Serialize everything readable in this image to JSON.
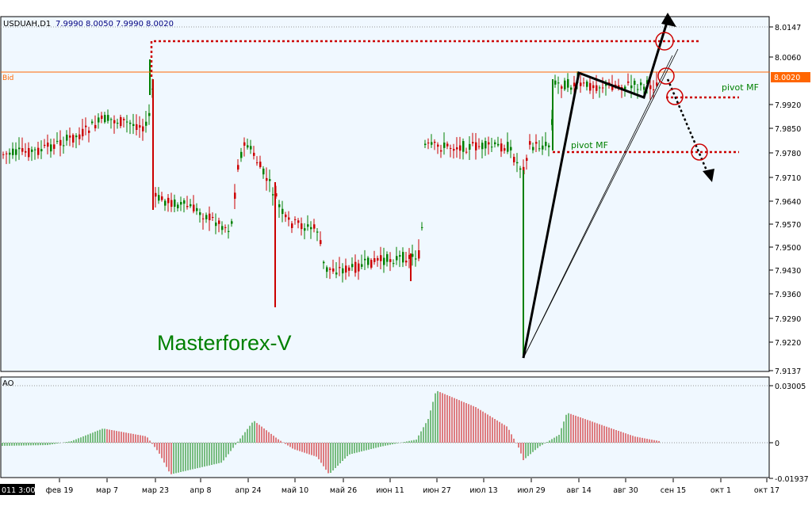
{
  "header": {
    "symbol": "USDUAH,D1",
    "open": "7.9990",
    "high": "8.0050",
    "low": "7.9990",
    "close": "8.0020"
  },
  "bid_label": "Bid",
  "watermark": "Masterforex-V",
  "pivot_label_1": "pivot MF",
  "pivot_label_2": "pivot MF",
  "current_time_label": "011 3:00",
  "colors": {
    "up": "#008000",
    "down": "#cc0000",
    "bg": "#f0f8ff",
    "bid": "#ff6600"
  },
  "chart_data": [
    {
      "type": "candlestick",
      "y_ticks": [
        "8.0147",
        "8.0060",
        "8.0020",
        "7.9920",
        "7.9850",
        "7.9780",
        "7.9710",
        "7.9640",
        "7.9570",
        "7.9500",
        "7.9430",
        "7.9360",
        "7.9290",
        "7.9220",
        "7.9137"
      ],
      "ylim": [
        7.9137,
        8.0175
      ],
      "x_ticks": [
        "фев 19",
        "мар 7",
        "мар 23",
        "апр 8",
        "апр 24",
        "май 10",
        "май 26",
        "июн 11",
        "июн 27",
        "июл 13",
        "июл 29",
        "авг 14",
        "авг 30",
        "сен 15",
        "окт 1",
        "окт 17"
      ],
      "bid": 8.002,
      "annotations": [
        "pivot MF",
        "pivot MF",
        "Masterforex-V"
      ]
    },
    {
      "type": "bar",
      "title": "AO",
      "y_ticks": [
        "0.03005",
        "0",
        "-0.01937"
      ],
      "ylim": [
        -0.01937,
        0.03005
      ]
    }
  ]
}
